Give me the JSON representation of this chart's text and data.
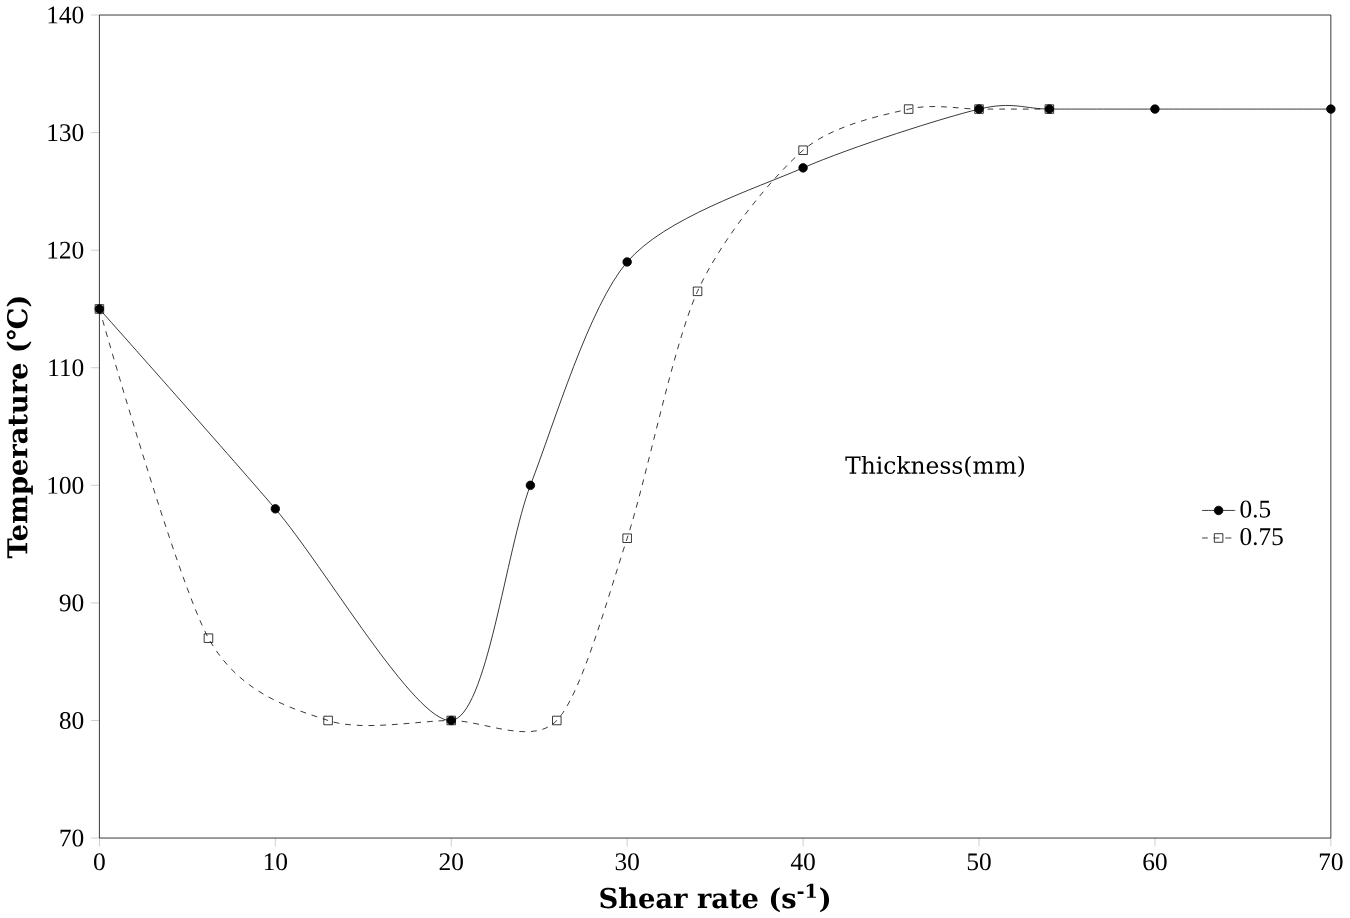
{
  "chart_data": {
    "type": "line",
    "xlabel": "Shear rate (s$^{-1}$)",
    "ylabel": "Temperature (℃)",
    "legend_title": "Thickness(mm)",
    "legend": "right",
    "xlim": [
      0,
      70
    ],
    "ylim": [
      70,
      140
    ],
    "xticks": [
      0,
      10,
      20,
      30,
      40,
      50,
      60,
      70
    ],
    "yticks": [
      70,
      80,
      90,
      100,
      110,
      120,
      130,
      140
    ],
    "grid": false,
    "series": [
      {
        "name": "0.5",
        "color": "#000000",
        "marker": "circle",
        "line_style": "solid",
        "x": [
          0,
          10,
          20,
          24.5,
          30,
          40,
          50,
          54,
          60,
          70
        ],
        "values": [
          115,
          98,
          80,
          100,
          119,
          127,
          132,
          132,
          132,
          132
        ]
      },
      {
        "name": "0.75",
        "color": "#000000",
        "marker": "square",
        "line_style": "dashed",
        "x": [
          0,
          6.2,
          13,
          20,
          26,
          30,
          34,
          40,
          46,
          50,
          54
        ],
        "values": [
          115,
          87,
          80,
          80,
          80,
          95.5,
          116.5,
          128.5,
          132,
          132,
          132
        ]
      }
    ]
  }
}
